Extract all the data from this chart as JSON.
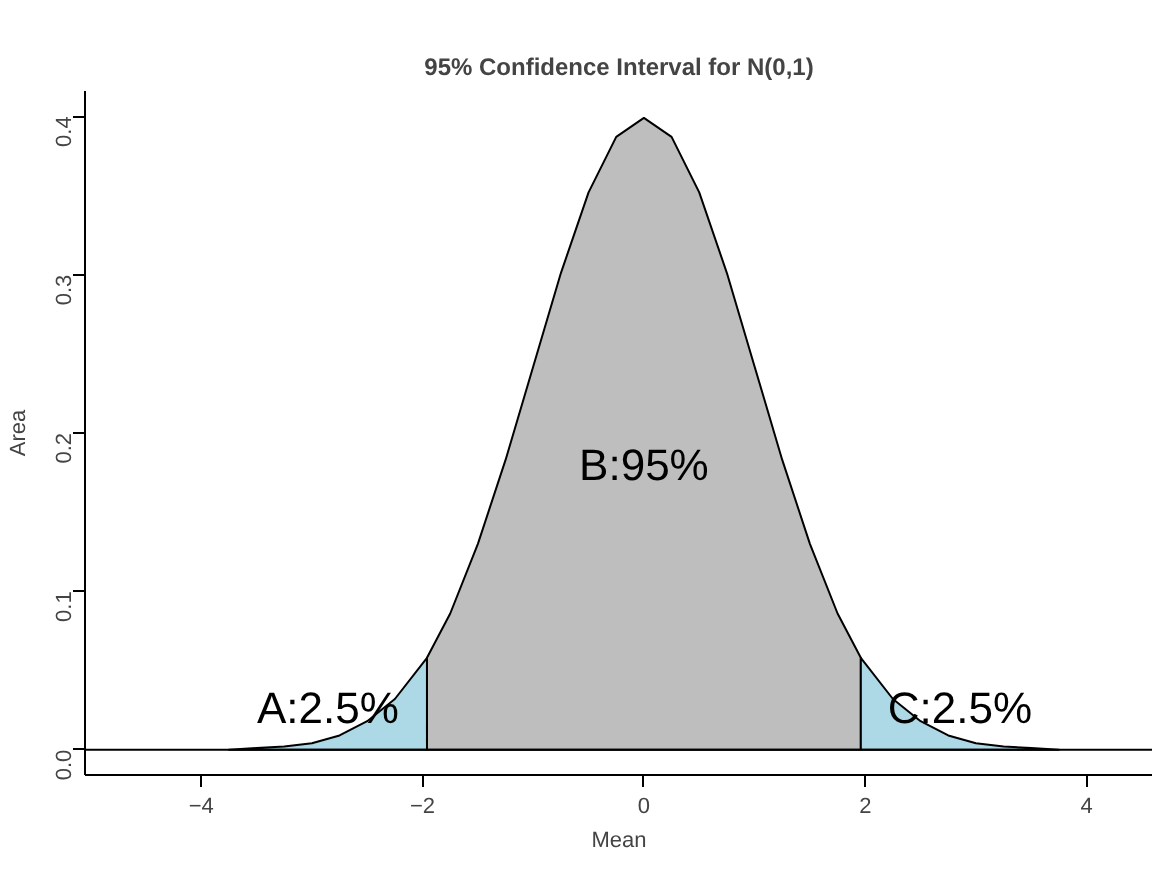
{
  "chart_data": {
    "type": "area",
    "title": "95% Confidence Interval for N(0,1)",
    "xlabel": "Mean",
    "ylabel": "Area",
    "series": [
      {
        "color": "#add8e6",
        "x": [
          -3.75,
          -3.5,
          -3.25,
          -3,
          -2.75,
          -2.5,
          -2.25,
          -1.96
        ],
        "values": [
          0.0,
          0.001,
          0.002,
          0.004,
          0.009,
          0.018,
          0.032,
          0.058
        ]
      },
      {
        "color": "#bebebe",
        "x": [
          -1.96,
          -1.75,
          -1.5,
          -1.25,
          -1,
          -0.75,
          -0.5,
          -0.25,
          0,
          0.25,
          0.5,
          0.75,
          1,
          1.25,
          1.5,
          1.75,
          1.96
        ],
        "values": [
          0.058,
          0.086,
          0.13,
          0.183,
          0.242,
          0.301,
          0.352,
          0.387,
          0.399,
          0.387,
          0.352,
          0.301,
          0.242,
          0.183,
          0.13,
          0.086,
          0.058
        ]
      },
      {
        "color": "#add8e6",
        "x": [
          1.96,
          2.25,
          2.5,
          2.75,
          3,
          3.25,
          3.5,
          3.75
        ],
        "values": [
          0.058,
          0.032,
          0.018,
          0.009,
          0.004,
          0.002,
          0.001,
          0.0
        ]
      }
    ],
    "annotations": [
      "A:2.5%",
      "B:95%",
      "C:2.5%"
    ],
    "ref_lines": [
      {
        "axis": "y",
        "value": 0,
        "color": "#000000"
      }
    ],
    "xlim": [
      -5.05,
      4.6
    ],
    "ylim": [
      -0.016,
      0.416
    ],
    "xticks": [
      -4,
      -2,
      0,
      2,
      4
    ],
    "yticks": [
      {
        "value": 0,
        "label": "0.0"
      },
      {
        "value": 0.1,
        "label": "0.1"
      },
      {
        "value": 0.2,
        "label": "0.2"
      },
      {
        "value": 0.3,
        "label": "0.3"
      },
      {
        "value": 0.4,
        "label": "0.4"
      }
    ],
    "grid": false
  }
}
